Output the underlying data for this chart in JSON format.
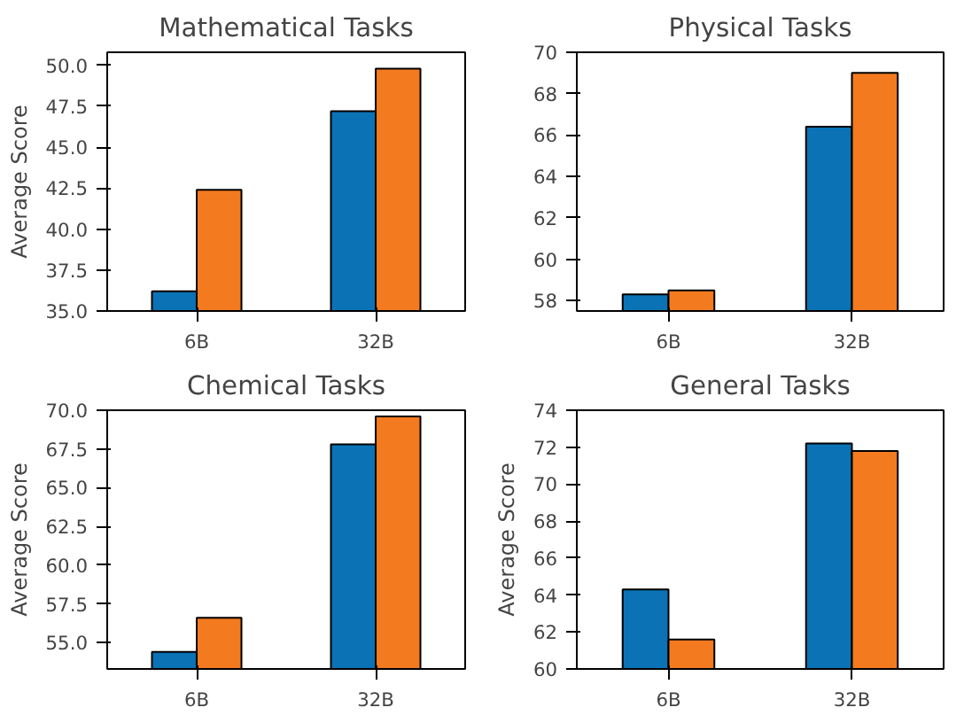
{
  "chart_data": [
    {
      "type": "bar",
      "title": "Mathematical Tasks",
      "ylabel": "Average Score",
      "categories": [
        "6B",
        "32B"
      ],
      "ylim": [
        35,
        50.8
      ],
      "yticks": [
        {
          "value": 35,
          "label": "35.0"
        },
        {
          "value": 37.5,
          "label": "37.5"
        },
        {
          "value": 40,
          "label": "40.0"
        },
        {
          "value": 42.5,
          "label": "42.5"
        },
        {
          "value": 45,
          "label": "45.0"
        },
        {
          "value": 47.5,
          "label": "47.5"
        },
        {
          "value": 50,
          "label": "50.0"
        }
      ],
      "series": [
        {
          "color": "#0a72b5",
          "values": [
            36.2,
            47.2
          ]
        },
        {
          "color": "#f47a20",
          "values": [
            42.4,
            49.8
          ]
        }
      ]
    },
    {
      "type": "bar",
      "title": "Physical Tasks",
      "categories": [
        "6B",
        "32B"
      ],
      "ylim": [
        57.5,
        70
      ],
      "yticks": [
        58,
        60,
        62,
        64,
        66,
        68,
        70
      ],
      "series": [
        {
          "color": "#0a72b5",
          "values": [
            58.3,
            66.4
          ]
        },
        {
          "color": "#f47a20",
          "values": [
            58.5,
            69.0
          ]
        }
      ]
    },
    {
      "type": "bar",
      "title": "Chemical Tasks",
      "ylabel": "Average Score",
      "categories": [
        "6B",
        "32B"
      ],
      "ylim": [
        53.3,
        70
      ],
      "yticks": [
        {
          "value": 55,
          "label": "55.0"
        },
        {
          "value": 57.5,
          "label": "57.5"
        },
        {
          "value": 60,
          "label": "60.0"
        },
        {
          "value": 62.5,
          "label": "62.5"
        },
        {
          "value": 65,
          "label": "65.0"
        },
        {
          "value": 67.5,
          "label": "67.5"
        },
        {
          "value": 70,
          "label": "70.0"
        }
      ],
      "series": [
        {
          "color": "#0a72b5",
          "values": [
            54.4,
            67.8
          ]
        },
        {
          "color": "#f47a20",
          "values": [
            56.6,
            69.6
          ]
        }
      ]
    },
    {
      "type": "bar",
      "title": "General Tasks",
      "ylabel": "Average Score",
      "categories": [
        "6B",
        "32B"
      ],
      "ylim": [
        60,
        74
      ],
      "yticks": [
        60,
        62,
        64,
        66,
        68,
        70,
        72,
        74
      ],
      "series": [
        {
          "color": "#0a72b5",
          "values": [
            64.3,
            72.2
          ]
        },
        {
          "color": "#f47a20",
          "values": [
            61.6,
            71.8
          ]
        }
      ]
    }
  ]
}
